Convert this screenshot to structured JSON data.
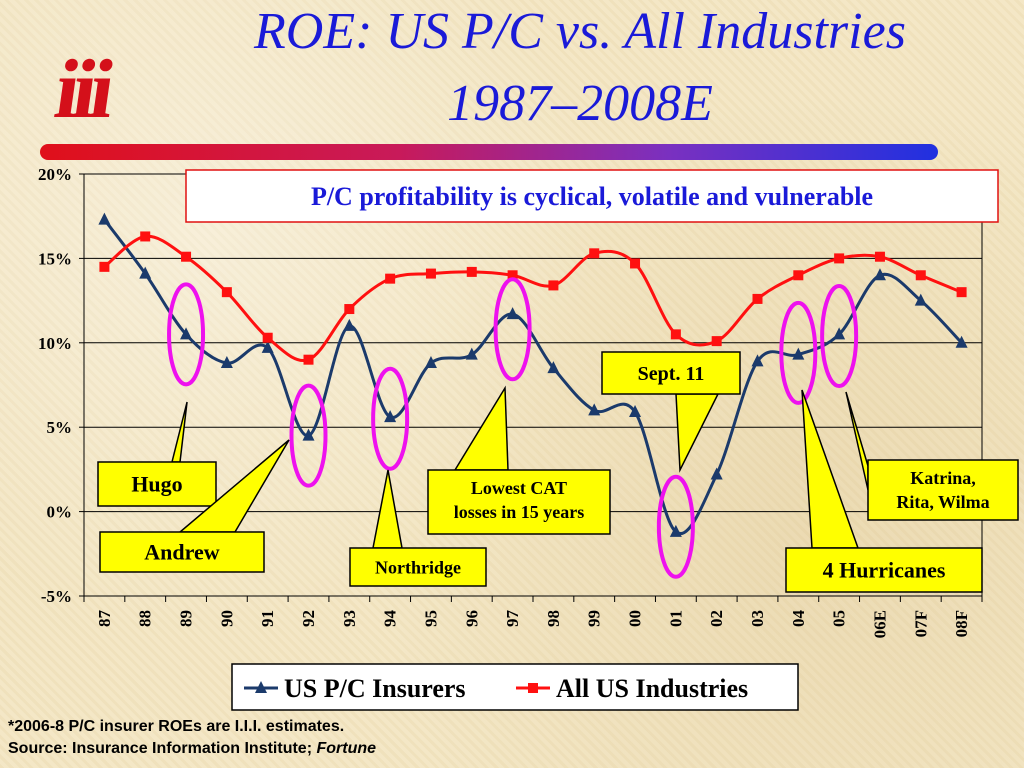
{
  "slide": {
    "title_line1": "ROE: US P/C vs. All Industries",
    "title_line2": "1987–2008E",
    "logo_text": "iii",
    "footnote_line1": "*2006-8 P/C insurer ROEs are I.I.I. estimates.",
    "footnote_line2_prefix": "Source:  Insurance Information Institute; ",
    "footnote_line2_italic": "Fortune"
  },
  "colors": {
    "title": "#1a1ad8",
    "pc_series": "#1b3a6b",
    "all_series": "#ff1010",
    "callout_fill": "#ffff00",
    "ellipse": "#ee11ee"
  },
  "chart_data": {
    "type": "line",
    "categories": [
      "87",
      "88",
      "89",
      "90",
      "91",
      "92",
      "93",
      "94",
      "95",
      "96",
      "97",
      "98",
      "99",
      "00",
      "01",
      "02",
      "03",
      "04",
      "05",
      "06E",
      "07F",
      "08F"
    ],
    "series": [
      {
        "name": "US P/C Insurers",
        "marker": "triangle",
        "values": [
          17.3,
          14.1,
          10.5,
          8.8,
          9.7,
          4.5,
          11.0,
          5.6,
          8.8,
          9.3,
          11.7,
          8.5,
          6.0,
          5.9,
          -1.2,
          2.2,
          8.9,
          9.3,
          10.5,
          14.0,
          12.5,
          10.0
        ]
      },
      {
        "name": "All US Industries",
        "marker": "square",
        "values": [
          14.5,
          16.3,
          15.1,
          13.0,
          10.3,
          9.0,
          12.0,
          13.8,
          14.1,
          14.2,
          14.0,
          13.4,
          15.3,
          14.7,
          10.5,
          10.1,
          12.6,
          14.0,
          15.0,
          15.1,
          14.0,
          13.0
        ]
      }
    ],
    "y_ticks": [
      "20%",
      "15%",
      "10%",
      "5%",
      "0%",
      "-5%"
    ],
    "y_tick_values": [
      20,
      15,
      10,
      5,
      0,
      -5
    ],
    "ylim": [
      -5,
      20
    ],
    "grid": true,
    "legend_position": "bottom",
    "headline": "P/C profitability is cyclical, volatile and vulnerable",
    "annotations": [
      {
        "text": "Hugo",
        "category": "89"
      },
      {
        "text": "Andrew",
        "category": "92"
      },
      {
        "text": "Northridge",
        "category": "94"
      },
      {
        "text": "Lowest CAT losses in 15 years",
        "category": "97"
      },
      {
        "text": "Sept. 11",
        "category": "01"
      },
      {
        "text": "4 Hurricanes",
        "category": "04"
      },
      {
        "text": "Katrina, Rita, Wilma",
        "category": "05"
      }
    ]
  }
}
